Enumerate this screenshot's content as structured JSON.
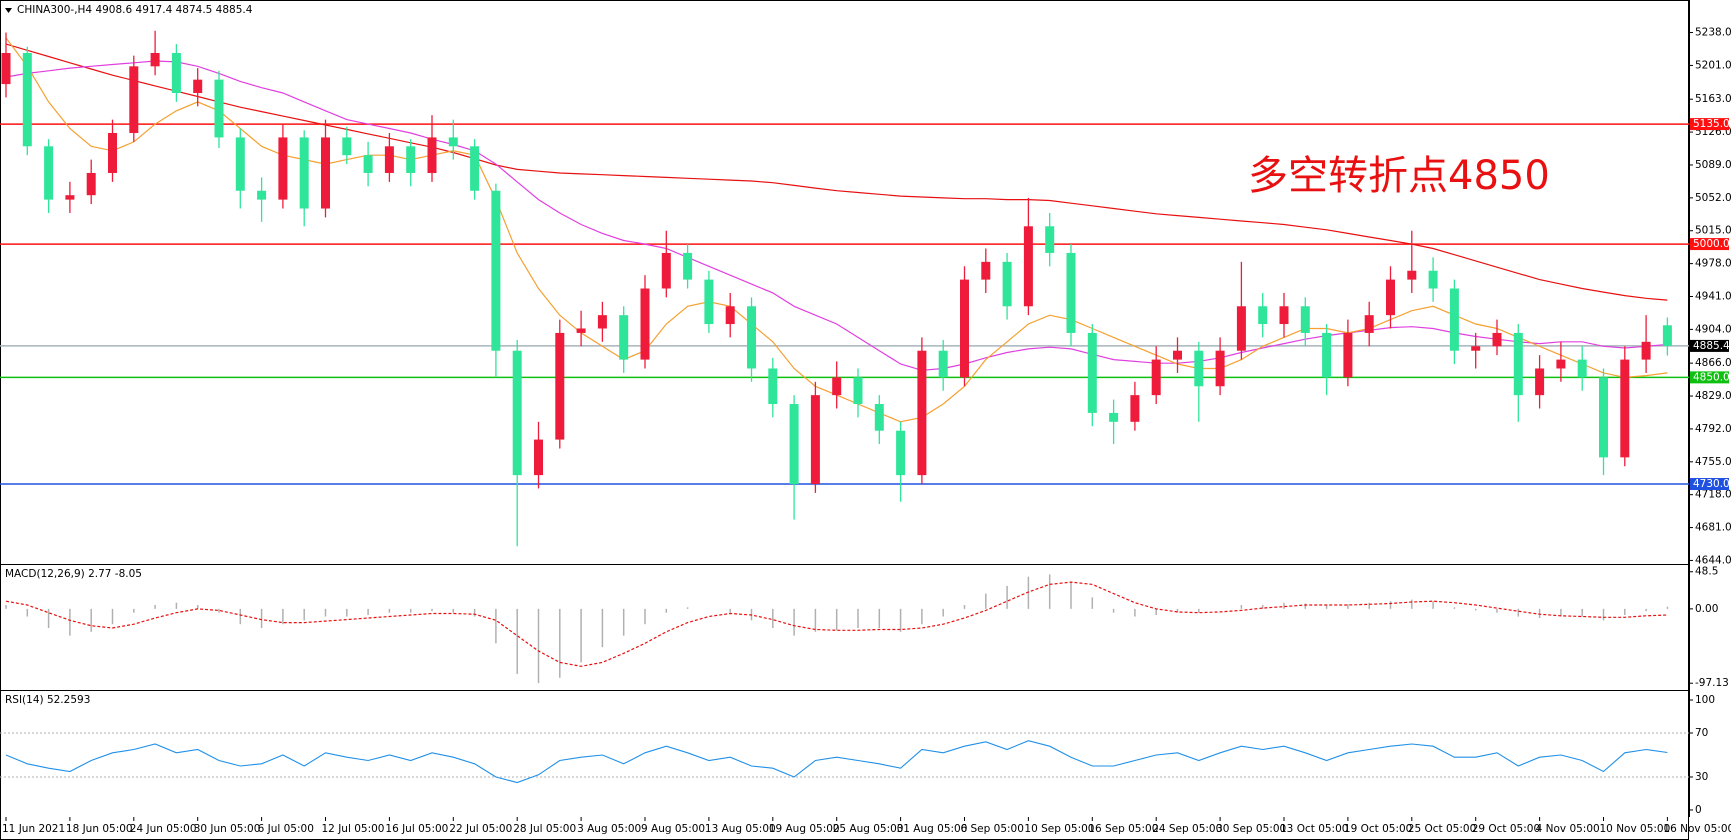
{
  "chart_data": [
    {
      "type": "candlestick",
      "title": "CHINA300-,H4  4908.6 4917.4 4874.5 4885.4",
      "annotation": "多空转折点4850",
      "categories": [
        "11 Jun 2021",
        null,
        null,
        "18 Jun 05:00",
        null,
        null,
        "24 Jun 05:00",
        null,
        null,
        "30 Jun 05:00",
        null,
        null,
        "6 Jul 05:00",
        null,
        null,
        "12 Jul 05:00",
        null,
        null,
        "16 Jul 05:00",
        null,
        null,
        "22 Jul 05:00",
        null,
        null,
        "28 Jul 05:00",
        null,
        null,
        "3 Aug 05:00",
        null,
        null,
        "9 Aug 05:00",
        null,
        null,
        "13 Aug 05:00",
        null,
        null,
        "19 Aug 05:00",
        null,
        null,
        "25 Aug 05:00",
        null,
        null,
        "31 Aug 05:00",
        null,
        null,
        "6 Sep 05:00",
        null,
        null,
        "10 Sep 05:00",
        null,
        null,
        "16 Sep 05:00",
        null,
        null,
        "24 Sep 05:00",
        null,
        null,
        "30 Sep 05:00",
        null,
        null,
        "13 Oct 05:00",
        null,
        null,
        "19 Oct 05:00",
        null,
        null,
        "25 Oct 05:00",
        null,
        null,
        "29 Oct 05:00",
        null,
        null,
        "4 Nov 05:00",
        null,
        null,
        "10 Nov 05:00",
        null,
        null,
        "16 Nov 05:00"
      ],
      "up_color": "#ee1c3a",
      "down_color": "#2fe59a",
      "candles": [
        [
          5180,
          5238,
          5165,
          5215
        ],
        [
          5215,
          5222,
          5100,
          5110
        ],
        [
          5110,
          5118,
          5035,
          5050
        ],
        [
          5050,
          5070,
          5035,
          5055
        ],
        [
          5055,
          5095,
          5045,
          5080
        ],
        [
          5080,
          5140,
          5070,
          5125
        ],
        [
          5125,
          5212,
          5115,
          5200
        ],
        [
          5200,
          5240,
          5190,
          5215
        ],
        [
          5215,
          5225,
          5160,
          5170
        ],
        [
          5170,
          5198,
          5155,
          5185
        ],
        [
          5185,
          5195,
          5108,
          5120
        ],
        [
          5120,
          5130,
          5040,
          5060
        ],
        [
          5060,
          5075,
          5025,
          5050
        ],
        [
          5050,
          5135,
          5040,
          5120
        ],
        [
          5120,
          5128,
          5020,
          5040
        ],
        [
          5040,
          5140,
          5030,
          5120
        ],
        [
          5120,
          5132,
          5090,
          5100
        ],
        [
          5100,
          5115,
          5065,
          5080
        ],
        [
          5080,
          5125,
          5070,
          5110
        ],
        [
          5110,
          5118,
          5065,
          5080
        ],
        [
          5080,
          5145,
          5070,
          5120
        ],
        [
          5120,
          5140,
          5095,
          5110
        ],
        [
          5110,
          5118,
          5050,
          5060
        ],
        [
          5060,
          5068,
          4850,
          4880
        ],
        [
          4880,
          4892,
          4660,
          4740
        ],
        [
          4740,
          4800,
          4725,
          4780
        ],
        [
          4780,
          4915,
          4770,
          4900
        ],
        [
          4900,
          4925,
          4885,
          4905
        ],
        [
          4905,
          4935,
          4890,
          4920
        ],
        [
          4920,
          4930,
          4855,
          4870
        ],
        [
          4870,
          4965,
          4860,
          4950
        ],
        [
          4950,
          5015,
          4940,
          4990
        ],
        [
          4990,
          5000,
          4950,
          4960
        ],
        [
          4960,
          4970,
          4900,
          4910
        ],
        [
          4910,
          4945,
          4895,
          4930
        ],
        [
          4930,
          4940,
          4845,
          4860
        ],
        [
          4860,
          4872,
          4805,
          4820
        ],
        [
          4820,
          4830,
          4690,
          4730
        ],
        [
          4730,
          4845,
          4720,
          4830
        ],
        [
          4830,
          4868,
          4815,
          4850
        ],
        [
          4850,
          4860,
          4805,
          4820
        ],
        [
          4820,
          4830,
          4775,
          4790
        ],
        [
          4790,
          4800,
          4710,
          4740
        ],
        [
          4740,
          4895,
          4730,
          4880
        ],
        [
          4880,
          4892,
          4835,
          4850
        ],
        [
          4850,
          4975,
          4840,
          4960
        ],
        [
          4960,
          4995,
          4945,
          4980
        ],
        [
          4980,
          4990,
          4915,
          4930
        ],
        [
          4930,
          5052,
          4920,
          5020
        ],
        [
          5020,
          5035,
          4975,
          4990
        ],
        [
          4990,
          5000,
          4885,
          4900
        ],
        [
          4900,
          4910,
          4795,
          4810
        ],
        [
          4810,
          4825,
          4775,
          4800
        ],
        [
          4800,
          4845,
          4790,
          4830
        ],
        [
          4830,
          4885,
          4820,
          4870
        ],
        [
          4870,
          4895,
          4855,
          4880
        ],
        [
          4880,
          4890,
          4800,
          4840
        ],
        [
          4840,
          4895,
          4830,
          4880
        ],
        [
          4880,
          4980,
          4870,
          4930
        ],
        [
          4930,
          4945,
          4895,
          4910
        ],
        [
          4910,
          4945,
          4895,
          4930
        ],
        [
          4930,
          4940,
          4885,
          4900
        ],
        [
          4900,
          4910,
          4830,
          4850
        ],
        [
          4850,
          4915,
          4840,
          4900
        ],
        [
          4900,
          4935,
          4885,
          4920
        ],
        [
          4920,
          4975,
          4905,
          4960
        ],
        [
          4960,
          5015,
          4945,
          4970
        ],
        [
          4970,
          4985,
          4935,
          4950
        ],
        [
          4950,
          4960,
          4865,
          4880
        ],
        [
          4880,
          4900,
          4860,
          4885
        ],
        [
          4885,
          4915,
          4875,
          4900
        ],
        [
          4900,
          4910,
          4800,
          4830
        ],
        [
          4830,
          4875,
          4815,
          4860
        ],
        [
          4860,
          4890,
          4845,
          4870
        ],
        [
          4870,
          4885,
          4835,
          4850
        ],
        [
          4850,
          4860,
          4740,
          4760
        ],
        [
          4760,
          4885,
          4750,
          4870
        ],
        [
          4870,
          4920,
          4855,
          4890
        ],
        [
          4908.6,
          4917.4,
          4874.5,
          4885.4
        ]
      ],
      "series": [
        {
          "color": "#e81010",
          "values": [
            5225,
            5218,
            5211,
            5204,
            5197,
            5190,
            5184,
            5178,
            5172,
            5166,
            5160,
            5154,
            5149,
            5144,
            5139,
            5134,
            5129,
            5124,
            5119,
            5114,
            5109,
            5103,
            5096,
            5089,
            5084,
            5082,
            5080,
            5079,
            5078,
            5077,
            5076,
            5075,
            5074,
            5073,
            5072,
            5071,
            5069,
            5066,
            5063,
            5060,
            5058,
            5056,
            5054,
            5053,
            5052,
            5051,
            5051,
            5050,
            5050,
            5049,
            5046,
            5043,
            5040,
            5037,
            5034,
            5032,
            5030,
            5028,
            5026,
            5024,
            5022,
            5019,
            5016,
            5012,
            5008,
            5004,
            5000,
            4995,
            4988,
            4981,
            4974,
            4967,
            4960,
            4955,
            4950,
            4946,
            4942,
            4939,
            4937
          ]
        },
        {
          "color": "#e040e0",
          "values": [
            5188,
            5192,
            5195,
            5198,
            5200,
            5202,
            5204,
            5206,
            5205,
            5200,
            5192,
            5183,
            5176,
            5170,
            5160,
            5150,
            5140,
            5135,
            5130,
            5125,
            5118,
            5112,
            5105,
            5090,
            5070,
            5050,
            5035,
            5022,
            5012,
            5004,
            5000,
            4995,
            4985,
            4975,
            4965,
            4955,
            4945,
            4930,
            4920,
            4910,
            4895,
            4880,
            4865,
            4858,
            4860,
            4865,
            4872,
            4878,
            4882,
            4884,
            4882,
            4876,
            4870,
            4868,
            4866,
            4866,
            4868,
            4872,
            4878,
            4883,
            4888,
            4893,
            4897,
            4900,
            4903,
            4906,
            4907,
            4905,
            4900,
            4896,
            4893,
            4890,
            4888,
            4890,
            4890,
            4885,
            4883,
            4885,
            4887
          ]
        },
        {
          "color": "#f5a030",
          "values": [
            5232,
            5200,
            5160,
            5130,
            5110,
            5105,
            5115,
            5135,
            5150,
            5160,
            5150,
            5130,
            5110,
            5100,
            5095,
            5090,
            5095,
            5100,
            5100,
            5095,
            5100,
            5105,
            5100,
            5050,
            4990,
            4950,
            4920,
            4900,
            4885,
            4870,
            4880,
            4910,
            4930,
            4935,
            4930,
            4910,
            4890,
            4860,
            4840,
            4830,
            4820,
            4810,
            4800,
            4805,
            4820,
            4840,
            4870,
            4890,
            4910,
            4920,
            4915,
            4905,
            4895,
            4885,
            4875,
            4865,
            4860,
            4860,
            4870,
            4885,
            4895,
            4905,
            4905,
            4900,
            4905,
            4915,
            4925,
            4930,
            4920,
            4910,
            4905,
            4895,
            4885,
            4875,
            4865,
            4855,
            4850,
            4852,
            4855
          ]
        }
      ],
      "hlines": [
        {
          "value": 5135,
          "label": "5135.0",
          "color": "#ff1010",
          "label_bg": "#ff1010"
        },
        {
          "value": 5000,
          "label": "5000.0",
          "color": "#ff1010",
          "label_bg": "#ff1010"
        },
        {
          "value": 4885.4,
          "label": "4885.4",
          "color": "#a8b4bc",
          "label_bg": "#000000"
        },
        {
          "value": 4850,
          "label": "4850.0",
          "color": "#10c010",
          "label_bg": "#10c010"
        },
        {
          "value": 4730,
          "label": "4730.0",
          "color": "#2050e0",
          "label_bg": "#2050e0"
        }
      ],
      "ylim": [
        4640,
        5260
      ],
      "yticks": [
        {
          "value": 4644,
          "label": "4644.0"
        },
        {
          "value": 4681,
          "label": "4681.0"
        },
        {
          "value": 4718,
          "label": "4718.0"
        },
        {
          "value": 4755,
          "label": "4755.0"
        },
        {
          "value": 4792,
          "label": "4792.0"
        },
        {
          "value": 4829,
          "label": "4829.0"
        },
        {
          "value": 4866,
          "label": "4866.0"
        },
        {
          "value": 4904,
          "label": "4904.0"
        },
        {
          "value": 4941,
          "label": "4941.0"
        },
        {
          "value": 4978,
          "label": "4978.0"
        },
        {
          "value": 5015,
          "label": "5015.0"
        },
        {
          "value": 5052,
          "label": "5052.0"
        },
        {
          "value": 5089,
          "label": "5089.0"
        },
        {
          "value": 5126,
          "label": "5126.0"
        },
        {
          "value": 5163,
          "label": "5163.0"
        },
        {
          "value": 5201,
          "label": "5201.0"
        },
        {
          "value": 5238,
          "label": "5238.0"
        }
      ]
    },
    {
      "type": "macd",
      "title": "MACD(12,26,9) 2.77 -8.05",
      "histogram": {
        "color": "#b0b0b0",
        "values": [
          5,
          -10,
          -25,
          -35,
          -30,
          -20,
          -5,
          5,
          8,
          5,
          -5,
          -20,
          -25,
          -20,
          -15,
          -10,
          -10,
          -8,
          -5,
          -5,
          -3,
          -5,
          -10,
          -45,
          -85,
          -97,
          -90,
          -70,
          -50,
          -35,
          -20,
          -5,
          2,
          0,
          -5,
          -15,
          -25,
          -35,
          -30,
          -28,
          -25,
          -25,
          -30,
          -20,
          -10,
          5,
          20,
          30,
          42,
          45,
          35,
          15,
          -5,
          -10,
          -8,
          -5,
          -5,
          0,
          5,
          5,
          8,
          7,
          5,
          6,
          8,
          10,
          12,
          10,
          2,
          -2,
          -5,
          -10,
          -12,
          -10,
          -10,
          -15,
          -8,
          -3,
          2.77
        ]
      },
      "signal": {
        "color": "#e81010",
        "values": [
          10,
          5,
          -5,
          -15,
          -22,
          -25,
          -20,
          -12,
          -5,
          0,
          -2,
          -8,
          -14,
          -18,
          -18,
          -16,
          -14,
          -12,
          -10,
          -8,
          -6,
          -6,
          -7,
          -15,
          -35,
          -55,
          -70,
          -75,
          -70,
          -58,
          -45,
          -30,
          -18,
          -10,
          -6,
          -8,
          -14,
          -22,
          -27,
          -28,
          -28,
          -27,
          -27,
          -25,
          -20,
          -12,
          -2,
          10,
          22,
          32,
          35,
          32,
          20,
          8,
          0,
          -4,
          -5,
          -4,
          -2,
          1,
          3,
          5,
          5,
          5,
          6,
          7,
          9,
          10,
          8,
          5,
          1,
          -3,
          -7,
          -9,
          -10,
          -11,
          -11,
          -9,
          -8.05
        ]
      },
      "ylim": [
        -106,
        56
      ],
      "yticks": [
        -97.13,
        {
          "value": 0,
          "label": "0.00"
        },
        48.5
      ]
    },
    {
      "type": "line",
      "title": "RSI(14) 52.2593",
      "color": "#2090e8",
      "values": [
        50,
        42,
        38,
        35,
        45,
        52,
        55,
        60,
        52,
        55,
        45,
        40,
        42,
        50,
        40,
        52,
        48,
        45,
        50,
        45,
        52,
        48,
        42,
        30,
        25,
        32,
        45,
        48,
        50,
        42,
        52,
        58,
        52,
        45,
        48,
        40,
        38,
        30,
        45,
        48,
        45,
        42,
        38,
        55,
        52,
        58,
        62,
        55,
        63,
        58,
        48,
        40,
        40,
        45,
        50,
        52,
        45,
        52,
        58,
        55,
        58,
        52,
        45,
        52,
        55,
        58,
        60,
        58,
        48,
        48,
        52,
        40,
        48,
        50,
        45,
        35,
        52,
        55,
        52.26
      ],
      "levels": [
        30,
        70
      ],
      "ylim": [
        -6.4,
        107.3
      ],
      "yticks": [
        0,
        30,
        70,
        100
      ]
    }
  ]
}
